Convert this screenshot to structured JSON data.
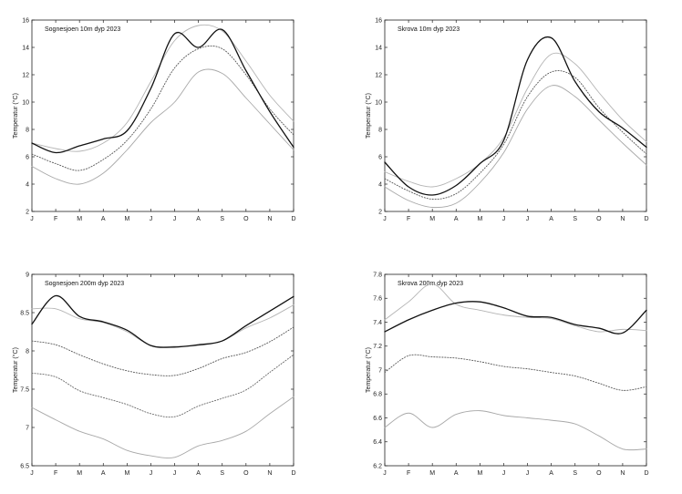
{
  "chart_data": [
    {
      "type": "line",
      "title": "Sognesjoen 10m dyp 2023",
      "ylabel": "Temperatur (°C)",
      "ylim": [
        2,
        16
      ],
      "yticks": [
        2,
        4,
        6,
        8,
        10,
        12,
        14,
        16
      ],
      "categories": [
        "J",
        "F",
        "M",
        "A",
        "M",
        "J",
        "J",
        "A",
        "S",
        "O",
        "N",
        "D"
      ],
      "series": [
        {
          "style": "solid-black",
          "values": [
            7.0,
            6.3,
            6.8,
            7.3,
            7.9,
            11.0,
            15.0,
            14.0,
            15.3,
            12.3,
            9.3,
            6.7
          ]
        },
        {
          "style": "solid-grey-upper",
          "values": [
            7.0,
            6.6,
            6.4,
            7.0,
            8.5,
            11.5,
            14.5,
            15.6,
            15.2,
            13.0,
            10.5,
            8.6
          ]
        },
        {
          "style": "dotted-mean",
          "values": [
            6.2,
            5.5,
            5.0,
            5.8,
            7.2,
            9.5,
            12.5,
            13.9,
            13.9,
            12.0,
            9.5,
            7.6
          ]
        },
        {
          "style": "solid-grey-lower",
          "values": [
            5.3,
            4.4,
            4.0,
            4.8,
            6.5,
            8.5,
            10.0,
            12.2,
            12.1,
            10.3,
            8.4,
            6.5
          ]
        }
      ]
    },
    {
      "type": "line",
      "title": "Skrova 10m dyp 2023",
      "ylabel": "Temperatur (°C)",
      "ylim": [
        2,
        16
      ],
      "yticks": [
        2,
        4,
        6,
        8,
        10,
        12,
        14,
        16
      ],
      "categories": [
        "J",
        "F",
        "M",
        "A",
        "M",
        "J",
        "J",
        "A",
        "S",
        "O",
        "N",
        "D"
      ],
      "series": [
        {
          "style": "solid-black",
          "values": [
            5.6,
            3.8,
            3.2,
            3.9,
            5.5,
            7.2,
            13.1,
            14.7,
            11.5,
            9.3,
            8.1,
            6.7
          ]
        },
        {
          "style": "solid-grey-upper",
          "values": [
            4.9,
            4.2,
            3.8,
            4.4,
            5.5,
            7.4,
            11.0,
            13.5,
            12.8,
            10.7,
            8.7,
            7.1
          ]
        },
        {
          "style": "dotted-mean",
          "values": [
            4.4,
            3.5,
            2.9,
            3.3,
            4.8,
            6.9,
            10.4,
            12.2,
            11.8,
            9.6,
            7.8,
            6.2
          ]
        },
        {
          "style": "solid-grey-lower",
          "values": [
            3.8,
            2.8,
            2.3,
            2.6,
            4.1,
            6.3,
            9.5,
            11.2,
            10.4,
            8.7,
            7.0,
            5.4
          ]
        }
      ]
    },
    {
      "type": "line",
      "title": "Sognesjoen 200m dyp 2023",
      "ylabel": "Temperatur (°C)",
      "ylim": [
        6.5,
        9
      ],
      "yticks": [
        6.5,
        7,
        7.5,
        8,
        8.5,
        9
      ],
      "categories": [
        "J",
        "F",
        "M",
        "A",
        "M",
        "J",
        "J",
        "A",
        "S",
        "O",
        "N",
        "D"
      ],
      "series": [
        {
          "style": "solid-black",
          "values": [
            8.35,
            8.72,
            8.45,
            8.38,
            8.27,
            8.07,
            8.05,
            8.08,
            8.13,
            8.33,
            8.52,
            8.71
          ]
        },
        {
          "style": "solid-grey-upper",
          "values": [
            8.55,
            8.55,
            8.42,
            8.37,
            8.25,
            8.07,
            8.06,
            8.07,
            8.13,
            8.3,
            8.43,
            8.6
          ]
        },
        {
          "style": "dotted-mean",
          "values": [
            8.13,
            8.08,
            7.95,
            7.83,
            7.74,
            7.69,
            7.68,
            7.77,
            7.9,
            7.98,
            8.12,
            8.31
          ]
        },
        {
          "style": "dotted-lower",
          "values": [
            7.71,
            7.66,
            7.48,
            7.39,
            7.3,
            7.18,
            7.14,
            7.28,
            7.38,
            7.49,
            7.72,
            7.95
          ]
        },
        {
          "style": "solid-grey-lower",
          "values": [
            7.26,
            7.1,
            6.95,
            6.85,
            6.7,
            6.63,
            6.61,
            6.76,
            6.83,
            6.95,
            7.18,
            7.4
          ]
        }
      ]
    },
    {
      "type": "line",
      "title": "Skrova 200m dyp 2023",
      "ylabel": "Temperatur (°C)",
      "ylim": [
        6.2,
        7.8
      ],
      "yticks": [
        6.2,
        6.4,
        6.6,
        6.8,
        7,
        7.2,
        7.4,
        7.6,
        7.8
      ],
      "categories": [
        "J",
        "F",
        "M",
        "A",
        "M",
        "J",
        "J",
        "A",
        "S",
        "O",
        "N",
        "D"
      ],
      "series": [
        {
          "style": "solid-black",
          "values": [
            7.32,
            7.42,
            7.5,
            7.56,
            7.57,
            7.52,
            7.45,
            7.44,
            7.38,
            7.35,
            7.31,
            7.5
          ]
        },
        {
          "style": "solid-grey-upper",
          "values": [
            7.42,
            7.57,
            7.72,
            7.55,
            7.5,
            7.46,
            7.44,
            7.43,
            7.37,
            7.32,
            7.34,
            7.33
          ]
        },
        {
          "style": "dotted-mean",
          "values": [
            6.98,
            7.12,
            7.11,
            7.1,
            7.07,
            7.03,
            7.01,
            6.98,
            6.95,
            6.89,
            6.83,
            6.86
          ]
        },
        {
          "style": "solid-grey-lower",
          "values": [
            6.52,
            6.64,
            6.52,
            6.63,
            6.66,
            6.62,
            6.6,
            6.58,
            6.55,
            6.45,
            6.34,
            6.34
          ]
        }
      ]
    }
  ]
}
